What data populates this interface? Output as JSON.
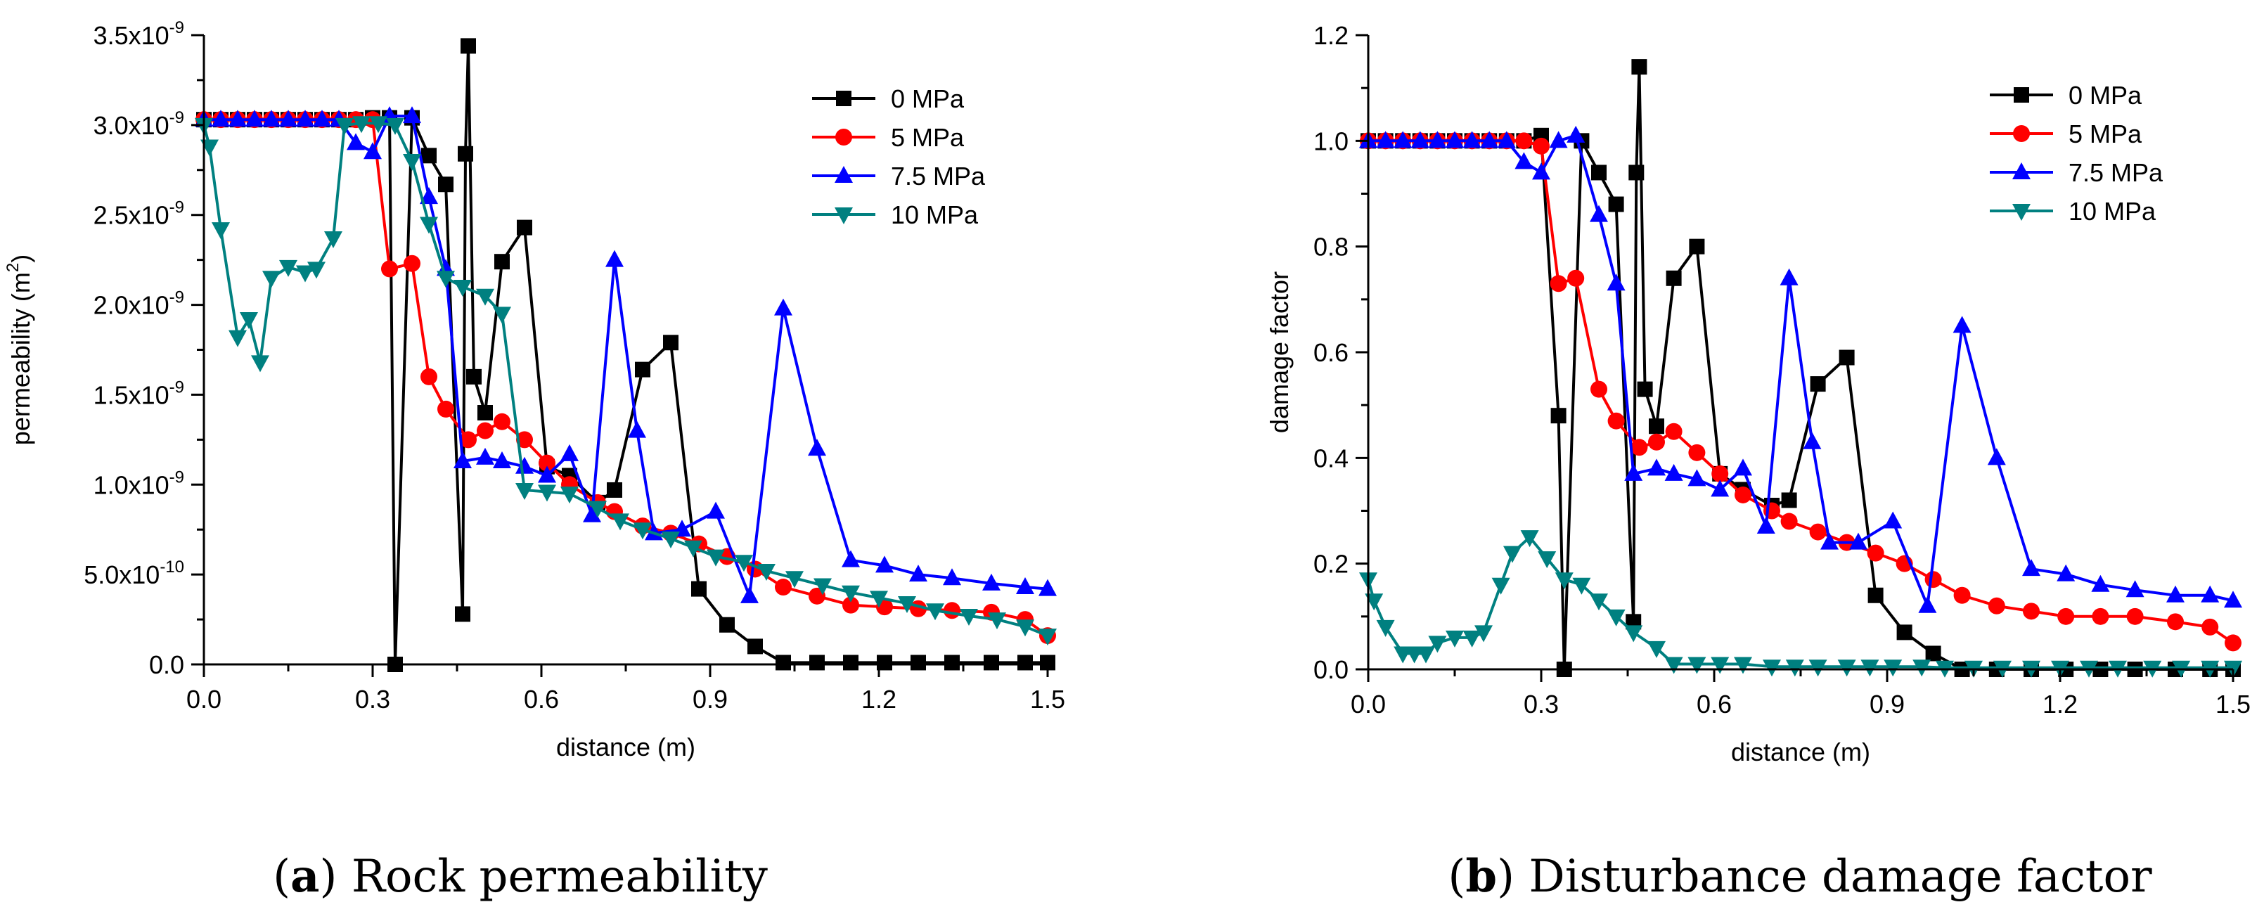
{
  "colors": {
    "series": [
      "#000000",
      "#ff0000",
      "#0000ff",
      "#008080"
    ]
  },
  "chart_data": [
    {
      "type": "line",
      "caption_label": "a",
      "caption_text": " Rock permeability",
      "xlabel": "distance (m)",
      "ylabel_main": "permeability (m",
      "ylabel_sup": "2",
      "ylabel_close": ")",
      "xlim": [
        0,
        1.5
      ],
      "ylim": [
        0,
        3.5e-09
      ],
      "xticks": [
        0,
        0.3,
        0.6,
        0.9,
        1.2,
        1.5
      ],
      "xtick_labels": [
        "0.0",
        "0.3",
        "0.6",
        "0.9",
        "1.2",
        "1.5"
      ],
      "yticks": [
        {
          "value": 0,
          "mant": "0.0",
          "exp": ""
        },
        {
          "value": 5e-10,
          "mant": "5.0x10",
          "exp": "-10"
        },
        {
          "value": 1e-09,
          "mant": "1.0x10",
          "exp": "-9"
        },
        {
          "value": 1.5e-09,
          "mant": "1.5x10",
          "exp": "-9"
        },
        {
          "value": 2e-09,
          "mant": "2.0x10",
          "exp": "-9"
        },
        {
          "value": 2.5e-09,
          "mant": "2.5x10",
          "exp": "-9"
        },
        {
          "value": 3e-09,
          "mant": "3.0x10",
          "exp": "-9"
        },
        {
          "value": 3.5e-09,
          "mant": "3.5x10",
          "exp": "-9"
        }
      ],
      "legend_position": "top-right",
      "series": [
        {
          "name": "0 MPa",
          "marker": "square",
          "x": [
            0,
            0.03,
            0.06,
            0.09,
            0.12,
            0.15,
            0.18,
            0.21,
            0.24,
            0.27,
            0.3,
            0.33,
            0.34,
            0.37,
            0.4,
            0.43,
            0.46,
            0.465,
            0.47,
            0.48,
            0.5,
            0.53,
            0.57,
            0.61,
            0.65,
            0.7,
            0.73,
            0.78,
            0.83,
            0.88,
            0.93,
            0.98,
            1.03,
            1.09,
            1.15,
            1.21,
            1.27,
            1.33,
            1.4,
            1.46,
            1.5
          ],
          "y": [
            3.03e-09,
            3.03e-09,
            3.03e-09,
            3.03e-09,
            3.03e-09,
            3.03e-09,
            3.03e-09,
            3.03e-09,
            3.03e-09,
            3.03e-09,
            3.04e-09,
            3.04e-09,
            0,
            3.04e-09,
            2.83e-09,
            2.67e-09,
            2.8e-10,
            2.84e-09,
            3.44e-09,
            1.6e-09,
            1.4e-09,
            2.24e-09,
            2.43e-09,
            1.1e-09,
            1.05e-09,
            9e-10,
            9.7e-10,
            1.64e-09,
            1.79e-09,
            4.2e-10,
            2.2e-10,
            1e-10,
            1e-11,
            1e-11,
            1e-11,
            1e-11,
            1e-11,
            1e-11,
            1e-11,
            1e-11,
            1e-11
          ]
        },
        {
          "name": "5 MPa",
          "marker": "circle",
          "x": [
            0,
            0.03,
            0.06,
            0.09,
            0.12,
            0.15,
            0.18,
            0.21,
            0.24,
            0.27,
            0.3,
            0.33,
            0.37,
            0.4,
            0.43,
            0.47,
            0.5,
            0.53,
            0.57,
            0.61,
            0.65,
            0.7,
            0.73,
            0.78,
            0.83,
            0.88,
            0.93,
            0.98,
            1.03,
            1.09,
            1.15,
            1.21,
            1.27,
            1.33,
            1.4,
            1.46,
            1.5
          ],
          "y": [
            3.03e-09,
            3.03e-09,
            3.03e-09,
            3.03e-09,
            3.03e-09,
            3.03e-09,
            3.03e-09,
            3.03e-09,
            3.03e-09,
            3.03e-09,
            3.03e-09,
            2.2e-09,
            2.23e-09,
            1.6e-09,
            1.42e-09,
            1.25e-09,
            1.3e-09,
            1.35e-09,
            1.25e-09,
            1.12e-09,
            1e-09,
            9e-10,
            8.5e-10,
            7.7e-10,
            7.3e-10,
            6.7e-10,
            6e-10,
            5.3e-10,
            4.3e-10,
            3.8e-10,
            3.3e-10,
            3.2e-10,
            3.1e-10,
            3e-10,
            2.9e-10,
            2.5e-10,
            1.6e-10
          ]
        },
        {
          "name": "7.5 MPa",
          "marker": "triangle-up",
          "x": [
            0,
            0.03,
            0.06,
            0.09,
            0.12,
            0.15,
            0.18,
            0.21,
            0.24,
            0.27,
            0.3,
            0.33,
            0.37,
            0.4,
            0.43,
            0.46,
            0.5,
            0.53,
            0.57,
            0.61,
            0.65,
            0.69,
            0.73,
            0.77,
            0.8,
            0.85,
            0.91,
            0.97,
            1.03,
            1.09,
            1.15,
            1.21,
            1.27,
            1.33,
            1.4,
            1.46,
            1.5
          ],
          "y": [
            3.03e-09,
            3.03e-09,
            3.03e-09,
            3.03e-09,
            3.03e-09,
            3.03e-09,
            3.03e-09,
            3.03e-09,
            3.03e-09,
            2.9e-09,
            2.85e-09,
            3.05e-09,
            3.05e-09,
            2.6e-09,
            2.2e-09,
            1.13e-09,
            1.15e-09,
            1.13e-09,
            1.1e-09,
            1.05e-09,
            1.17e-09,
            8.3e-10,
            2.25e-09,
            1.3e-09,
            7.3e-10,
            7.5e-10,
            8.5e-10,
            3.8e-10,
            1.98e-09,
            1.2e-09,
            5.8e-10,
            5.5e-10,
            5e-10,
            4.8e-10,
            4.5e-10,
            4.3e-10,
            4.2e-10
          ]
        },
        {
          "name": "10 MPa",
          "marker": "triangle-down",
          "x": [
            0,
            0.01,
            0.03,
            0.06,
            0.08,
            0.1,
            0.12,
            0.15,
            0.18,
            0.2,
            0.23,
            0.25,
            0.28,
            0.31,
            0.34,
            0.37,
            0.4,
            0.43,
            0.46,
            0.5,
            0.53,
            0.57,
            0.61,
            0.65,
            0.7,
            0.74,
            0.78,
            0.83,
            0.87,
            0.91,
            0.96,
            1.0,
            1.05,
            1.1,
            1.15,
            1.2,
            1.25,
            1.3,
            1.36,
            1.41,
            1.46,
            1.5
          ],
          "y": [
            3e-09,
            2.88e-09,
            2.42e-09,
            1.82e-09,
            1.92e-09,
            1.68e-09,
            2.15e-09,
            2.21e-09,
            2.18e-09,
            2.2e-09,
            2.37e-09,
            3e-09,
            3.01e-09,
            3.01e-09,
            3e-09,
            2.8e-09,
            2.45e-09,
            2.15e-09,
            2.1e-09,
            2.05e-09,
            1.95e-09,
            9.7e-10,
            9.6e-10,
            9.5e-10,
            8.7e-10,
            8e-10,
            7.5e-10,
            7e-10,
            6.5e-10,
            6e-10,
            5.7e-10,
            5.2e-10,
            4.8e-10,
            4.4e-10,
            4e-10,
            3.7e-10,
            3.4e-10,
            3e-10,
            2.7e-10,
            2.5e-10,
            2.1e-10,
            1.6e-10
          ]
        }
      ]
    },
    {
      "type": "line",
      "caption_label": "b",
      "caption_text": " Disturbance damage factor",
      "xlabel": "distance (m)",
      "ylabel_main": "damage factor",
      "ylabel_sup": "",
      "ylabel_close": "",
      "xlim": [
        0,
        1.5
      ],
      "ylim": [
        0,
        1.2
      ],
      "xticks": [
        0,
        0.3,
        0.6,
        0.9,
        1.2,
        1.5
      ],
      "xtick_labels": [
        "0.0",
        "0.3",
        "0.6",
        "0.9",
        "1.2",
        "1.5"
      ],
      "yticks": [
        {
          "value": 0,
          "mant": "0.0",
          "exp": ""
        },
        {
          "value": 0.2,
          "mant": "0.2",
          "exp": ""
        },
        {
          "value": 0.4,
          "mant": "0.4",
          "exp": ""
        },
        {
          "value": 0.6,
          "mant": "0.6",
          "exp": ""
        },
        {
          "value": 0.8,
          "mant": "0.8",
          "exp": ""
        },
        {
          "value": 1.0,
          "mant": "1.0",
          "exp": ""
        },
        {
          "value": 1.2,
          "mant": "1.2",
          "exp": ""
        }
      ],
      "legend_position": "top-right",
      "series": [
        {
          "name": "0 MPa",
          "marker": "square",
          "x": [
            0,
            0.03,
            0.06,
            0.09,
            0.12,
            0.15,
            0.18,
            0.21,
            0.24,
            0.27,
            0.3,
            0.33,
            0.34,
            0.37,
            0.4,
            0.43,
            0.46,
            0.465,
            0.47,
            0.48,
            0.5,
            0.53,
            0.57,
            0.61,
            0.65,
            0.7,
            0.73,
            0.78,
            0.83,
            0.88,
            0.93,
            0.98,
            1.03,
            1.09,
            1.15,
            1.21,
            1.27,
            1.33,
            1.4,
            1.46,
            1.5
          ],
          "y": [
            1.0,
            1.0,
            1.0,
            1.0,
            1.0,
            1.0,
            1.0,
            1.0,
            1.0,
            1.0,
            1.01,
            0.48,
            0.0,
            1.0,
            0.94,
            0.88,
            0.09,
            0.94,
            1.14,
            0.53,
            0.46,
            0.74,
            0.8,
            0.37,
            0.34,
            0.31,
            0.32,
            0.54,
            0.59,
            0.14,
            0.07,
            0.03,
            0.0,
            0.0,
            0.0,
            0.0,
            0.0,
            0.0,
            0.0,
            0.0,
            0.0
          ]
        },
        {
          "name": "5 MPa",
          "marker": "circle",
          "x": [
            0,
            0.03,
            0.06,
            0.09,
            0.12,
            0.15,
            0.18,
            0.21,
            0.24,
            0.27,
            0.3,
            0.33,
            0.36,
            0.4,
            0.43,
            0.47,
            0.5,
            0.53,
            0.57,
            0.61,
            0.65,
            0.7,
            0.73,
            0.78,
            0.83,
            0.88,
            0.93,
            0.98,
            1.03,
            1.09,
            1.15,
            1.21,
            1.27,
            1.33,
            1.4,
            1.46,
            1.5
          ],
          "y": [
            1.0,
            1.0,
            1.0,
            1.0,
            1.0,
            1.0,
            1.0,
            1.0,
            1.0,
            1.0,
            0.99,
            0.73,
            0.74,
            0.53,
            0.47,
            0.42,
            0.43,
            0.45,
            0.41,
            0.37,
            0.33,
            0.3,
            0.28,
            0.26,
            0.24,
            0.22,
            0.2,
            0.17,
            0.14,
            0.12,
            0.11,
            0.1,
            0.1,
            0.1,
            0.09,
            0.08,
            0.05
          ]
        },
        {
          "name": "7.5 MPa",
          "marker": "triangle-up",
          "x": [
            0,
            0.03,
            0.06,
            0.09,
            0.12,
            0.15,
            0.18,
            0.21,
            0.24,
            0.27,
            0.3,
            0.33,
            0.36,
            0.4,
            0.43,
            0.46,
            0.5,
            0.53,
            0.57,
            0.61,
            0.65,
            0.69,
            0.73,
            0.77,
            0.8,
            0.85,
            0.91,
            0.97,
            1.03,
            1.09,
            1.15,
            1.21,
            1.27,
            1.33,
            1.4,
            1.46,
            1.5
          ],
          "y": [
            1.0,
            1.0,
            1.0,
            1.0,
            1.0,
            1.0,
            1.0,
            1.0,
            1.0,
            0.96,
            0.94,
            1.0,
            1.01,
            0.86,
            0.73,
            0.37,
            0.38,
            0.37,
            0.36,
            0.34,
            0.38,
            0.27,
            0.74,
            0.43,
            0.24,
            0.24,
            0.28,
            0.12,
            0.65,
            0.4,
            0.19,
            0.18,
            0.16,
            0.15,
            0.14,
            0.14,
            0.13
          ]
        },
        {
          "name": "10 MPa",
          "marker": "triangle-down",
          "x": [
            0,
            0.01,
            0.03,
            0.06,
            0.08,
            0.1,
            0.12,
            0.15,
            0.18,
            0.2,
            0.23,
            0.25,
            0.28,
            0.31,
            0.34,
            0.37,
            0.4,
            0.43,
            0.46,
            0.5,
            0.53,
            0.57,
            0.61,
            0.65,
            0.7,
            0.74,
            0.78,
            0.83,
            0.87,
            0.91,
            0.96,
            1.0,
            1.05,
            1.1,
            1.15,
            1.2,
            1.25,
            1.3,
            1.36,
            1.41,
            1.46,
            1.5
          ],
          "y": [
            0.17,
            0.13,
            0.08,
            0.03,
            0.03,
            0.03,
            0.05,
            0.06,
            0.06,
            0.07,
            0.16,
            0.22,
            0.25,
            0.21,
            0.17,
            0.16,
            0.13,
            0.1,
            0.07,
            0.04,
            0.01,
            0.01,
            0.01,
            0.01,
            0.005,
            0.005,
            0.005,
            0.005,
            0.005,
            0.005,
            0.005,
            0.003,
            0.003,
            0.003,
            0.003,
            0.003,
            0.003,
            0.003,
            0.003,
            0.003,
            0.003,
            0.003
          ]
        }
      ]
    }
  ]
}
